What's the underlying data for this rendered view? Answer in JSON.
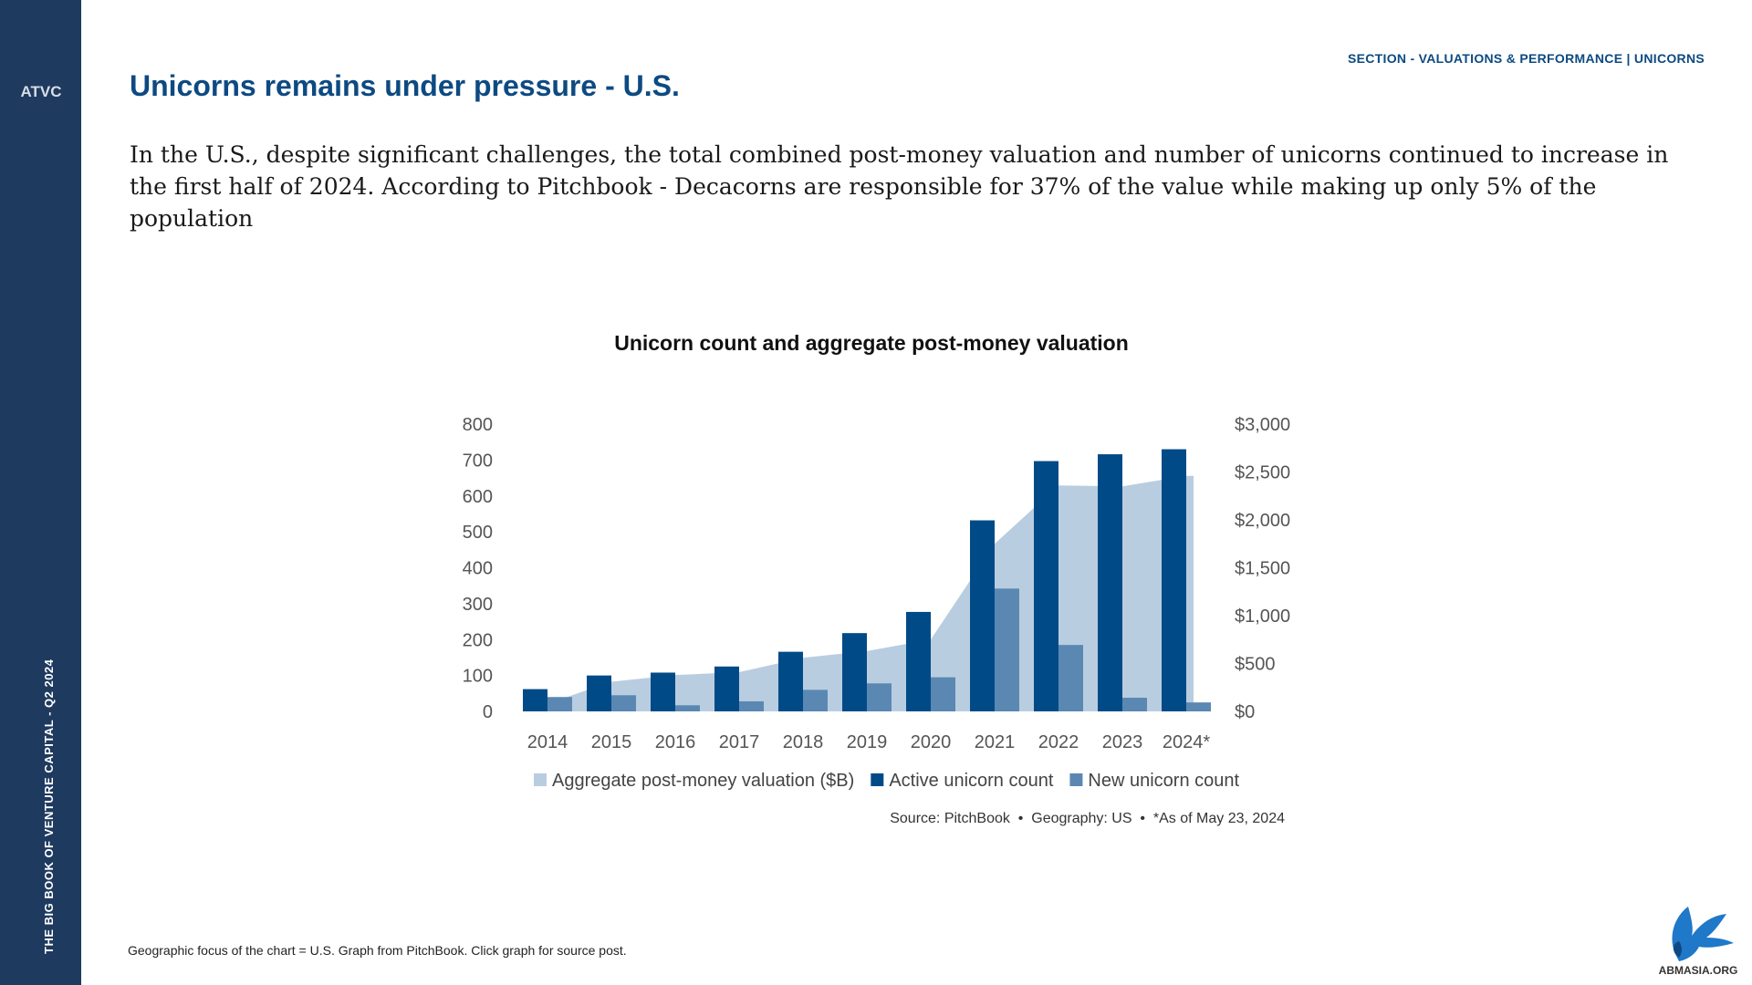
{
  "sidebar": {
    "logo_letters": "ATVC",
    "vertical_label": "THE BIG BOOK OF VENTURE CAPITAL - Q2 2024"
  },
  "header": {
    "section_label": "SECTION - VALUATIONS & PERFORMANCE | UNICORNS",
    "title": "Unicorns remains under pressure - U.S."
  },
  "intro_text": "In the U.S., despite significant challenges, the total combined post-money valuation and number of unicorns continued to increase in the first half of 2024. According to Pitchbook - Decacorns are responsible for 37% of the value while making up only 5% of the population",
  "chart_data": {
    "type": "bar",
    "title": "Unicorn count and aggregate post-money valuation",
    "categories": [
      "2014",
      "2015",
      "2016",
      "2017",
      "2018",
      "2019",
      "2020",
      "2021",
      "2022",
      "2023",
      "2024*"
    ],
    "series": [
      {
        "name": "Aggregate post-money valuation ($B)",
        "type": "area",
        "axis": "right",
        "color": "#b9cde0",
        "values": [
          80,
          310,
          380,
          410,
          560,
          630,
          750,
          1750,
          2360,
          2350,
          2460
        ]
      },
      {
        "name": "Active unicorn count",
        "type": "bar",
        "axis": "left",
        "color": "#004b87",
        "values": [
          62,
          100,
          108,
          125,
          166,
          218,
          277,
          532,
          697,
          716,
          730
        ]
      },
      {
        "name": "New unicorn count",
        "type": "bar",
        "axis": "left",
        "color": "#5a88b2",
        "values": [
          40,
          45,
          17,
          28,
          60,
          78,
          95,
          342,
          185,
          38,
          25
        ]
      }
    ],
    "left_axis": {
      "range": [
        0,
        800
      ],
      "ticks": [
        "0",
        "100",
        "200",
        "300",
        "400",
        "500",
        "600",
        "700",
        "800"
      ]
    },
    "right_axis": {
      "range": [
        0,
        3000
      ],
      "ticks": [
        "$0",
        "$500",
        "$1,000",
        "$1,500",
        "$2,000",
        "$2,500",
        "$3,000"
      ]
    },
    "legend_position": "bottom",
    "source_note": "Source: PitchBook  •  Geography: US  •  *As of May 23, 2024"
  },
  "footer_note": "Geographic focus of the chart = U.S. Graph from PitchBook. Click graph for source post.",
  "corner_logo_text": "ABMASIA.ORG"
}
